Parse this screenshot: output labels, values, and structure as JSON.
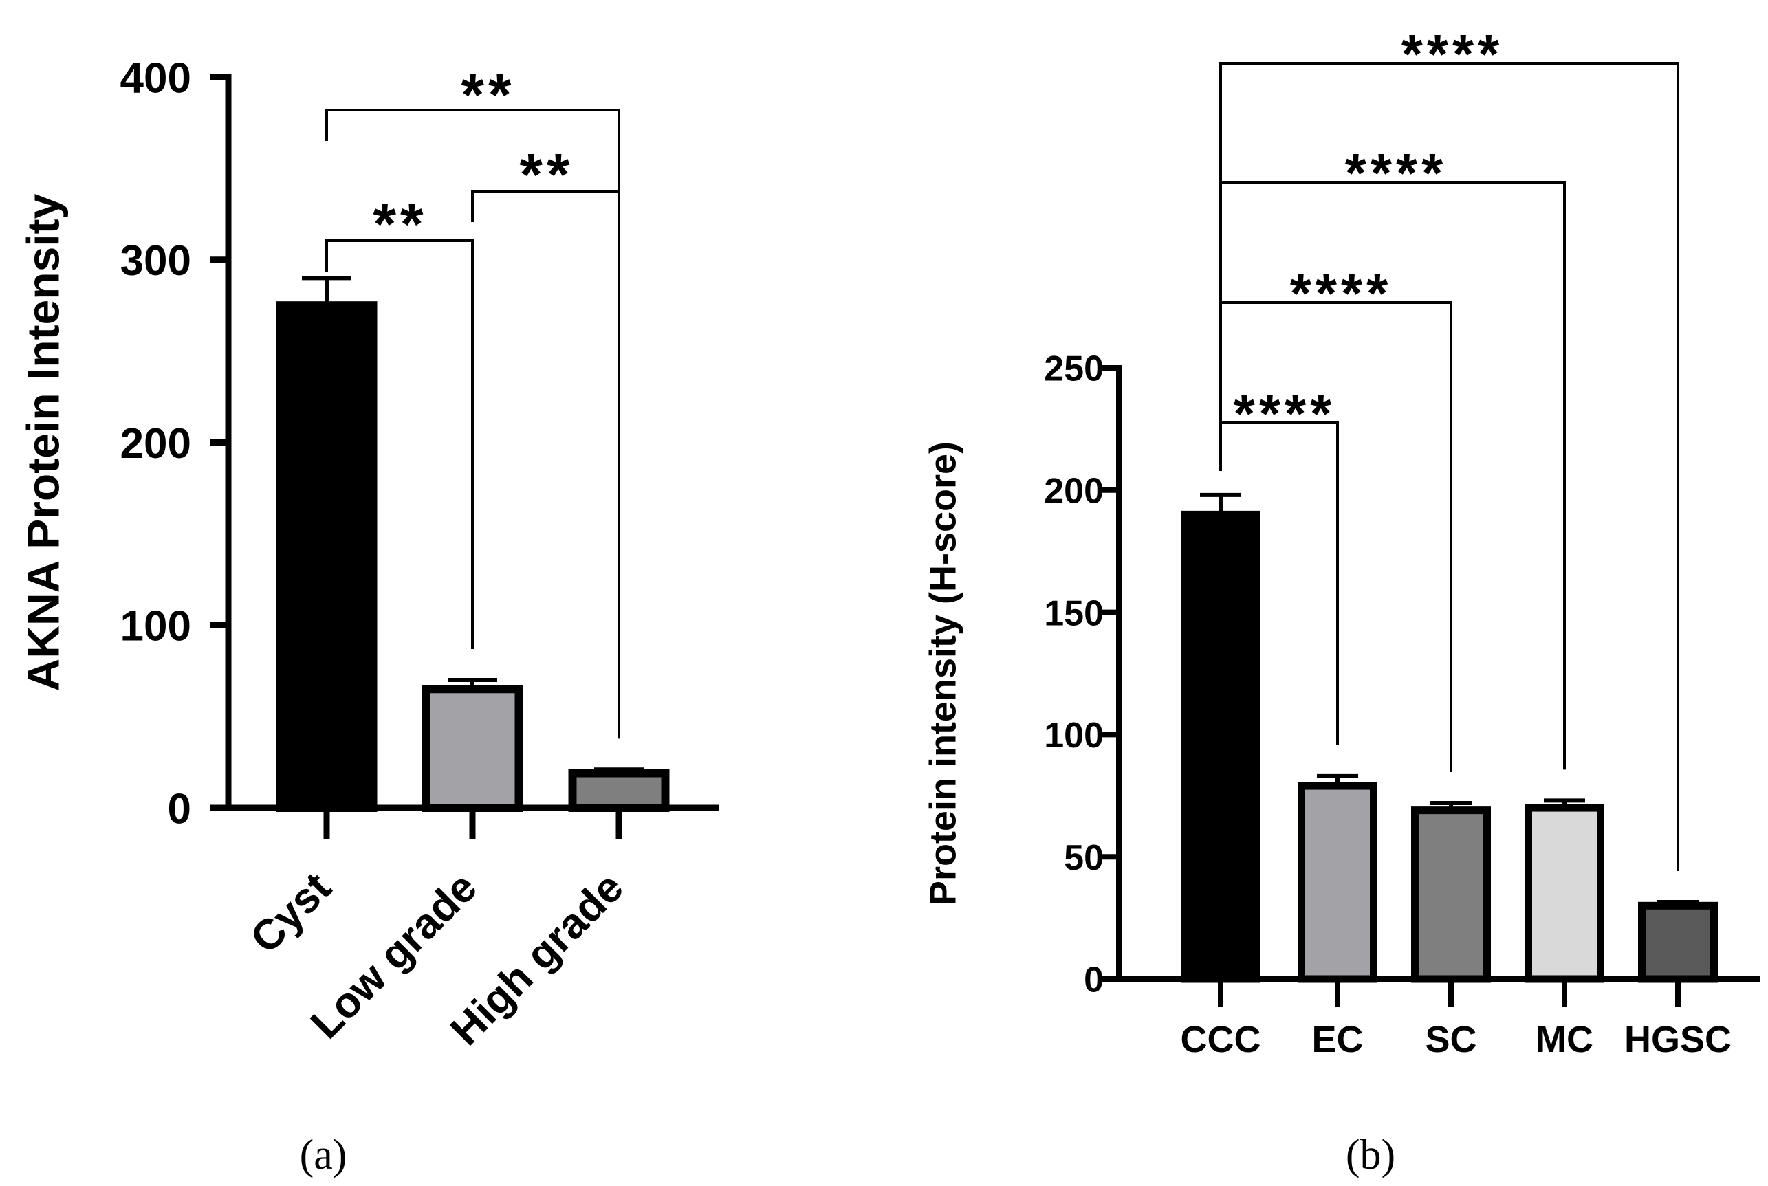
{
  "chart_data": [
    {
      "type": "bar",
      "panel_label": "(a)",
      "categories": [
        "Cyst",
        "Low grade",
        "High grade"
      ],
      "values": [
        275,
        65,
        19
      ],
      "error": [
        15,
        5,
        2
      ],
      "colors": [
        "#000000",
        "#a3a2a7",
        "#7f7f7f"
      ],
      "ylabel": "AKNA Protein Intensity",
      "xlabel": "",
      "ylim": [
        0,
        400
      ],
      "yticks": [
        0,
        100,
        200,
        300,
        400
      ],
      "grid": false,
      "comparisons": [
        {
          "from": 0,
          "to": 2,
          "label": "**"
        },
        {
          "from": 0,
          "to": 1,
          "label": "**"
        },
        {
          "from": 1,
          "to": 2,
          "label": "**"
        }
      ]
    },
    {
      "type": "bar",
      "panel_label": "(b)",
      "categories": [
        "CCC",
        "EC",
        "SC",
        "MC",
        "HGSC"
      ],
      "values": [
        190,
        79,
        69,
        70,
        30
      ],
      "error": [
        8,
        4,
        3,
        3,
        1.5
      ],
      "colors": [
        "#000000",
        "#a3a2a7",
        "#7f7f7f",
        "#d9d9d9",
        "#5a5a5a"
      ],
      "ylabel": "Protein intensity (H-score)",
      "xlabel": "",
      "ylim": [
        0,
        250
      ],
      "yticks": [
        0,
        50,
        100,
        150,
        200,
        250
      ],
      "grid": false,
      "comparisons": [
        {
          "from": 0,
          "to": 4,
          "label": "****"
        },
        {
          "from": 0,
          "to": 3,
          "label": "****"
        },
        {
          "from": 0,
          "to": 2,
          "label": "****"
        },
        {
          "from": 0,
          "to": 1,
          "label": "****"
        }
      ]
    }
  ]
}
